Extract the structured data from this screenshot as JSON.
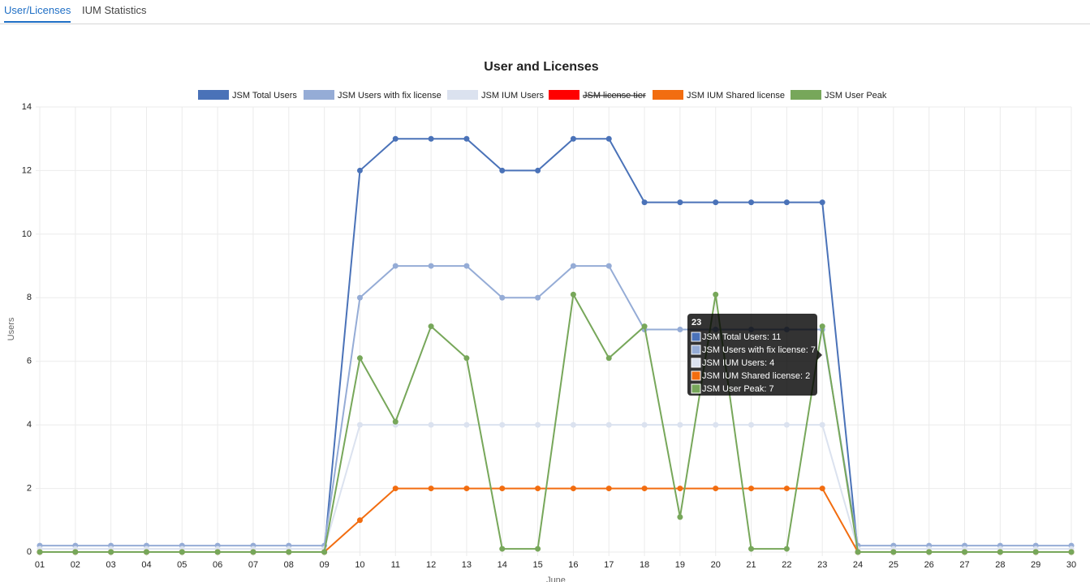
{
  "tabs": [
    "User/Licenses",
    "IUM Statistics"
  ],
  "chart_data": {
    "type": "line",
    "title": "User and Licenses",
    "x_label": "June",
    "y_label": "Users",
    "categories": [
      "01",
      "02",
      "03",
      "04",
      "05",
      "06",
      "07",
      "08",
      "09",
      "10",
      "11",
      "12",
      "13",
      "14",
      "15",
      "16",
      "17",
      "18",
      "19",
      "20",
      "21",
      "22",
      "23",
      "24",
      "25",
      "26",
      "27",
      "28",
      "29",
      "30"
    ],
    "ylim": [
      0,
      14
    ],
    "yticks": [
      0,
      2,
      4,
      6,
      8,
      10,
      12,
      14
    ],
    "grid": true,
    "legend": "top",
    "series": [
      {
        "name": "JSM Total Users",
        "color": "#4a72b8",
        "values": [
          0,
          0,
          0,
          0,
          0,
          0,
          0,
          0,
          0,
          12,
          13,
          13,
          13,
          12,
          12,
          13,
          13,
          11,
          11,
          11,
          11,
          11,
          11,
          0,
          0,
          0,
          0,
          0,
          0,
          0
        ]
      },
      {
        "name": "JSM Users with fix license",
        "color": "#95acd6",
        "values": [
          0.2,
          0.2,
          0.2,
          0.2,
          0.2,
          0.2,
          0.2,
          0.2,
          0.2,
          8,
          9,
          9,
          9,
          8,
          8,
          9,
          9,
          7,
          7,
          7,
          7,
          7,
          7,
          0.2,
          0.2,
          0.2,
          0.2,
          0.2,
          0.2,
          0.2
        ]
      },
      {
        "name": "JSM IUM Users",
        "color": "#dbe2ef",
        "values": [
          0.1,
          0.1,
          0.1,
          0.1,
          0.1,
          0.1,
          0.1,
          0.1,
          0.1,
          4,
          4,
          4,
          4,
          4,
          4,
          4,
          4,
          4,
          4,
          4,
          4,
          4,
          4,
          0.1,
          0.1,
          0.1,
          0.1,
          0.1,
          0.1,
          0.1
        ]
      },
      {
        "name": "JSM license tier",
        "color": "#ff0000",
        "hidden": true,
        "values": [
          null,
          null,
          null,
          null,
          null,
          null,
          null,
          null,
          null,
          null,
          null,
          null,
          null,
          null,
          null,
          null,
          null,
          null,
          null,
          null,
          null,
          null,
          null,
          null,
          null,
          null,
          null,
          null,
          null,
          null
        ]
      },
      {
        "name": "JSM IUM Shared license",
        "color": "#f26d10",
        "values": [
          0,
          0,
          0,
          0,
          0,
          0,
          0,
          0,
          0,
          1,
          2,
          2,
          2,
          2,
          2,
          2,
          2,
          2,
          2,
          2,
          2,
          2,
          2,
          0,
          0,
          0,
          0,
          0,
          0,
          0
        ]
      },
      {
        "name": "JSM User Peak",
        "color": "#77a75a",
        "values": [
          0,
          0,
          0,
          0,
          0,
          0,
          0,
          0,
          0,
          6.1,
          4.1,
          7.1,
          6.1,
          0.1,
          0.1,
          8.1,
          6.1,
          7.1,
          1.1,
          8.1,
          0.1,
          0.1,
          7.1,
          0,
          0,
          0,
          0,
          0,
          0,
          0
        ]
      }
    ],
    "tooltip": {
      "title": "23",
      "lines": [
        {
          "text": "JSM Total Users: 11",
          "color": "#4a72b8"
        },
        {
          "text": "JSM Users with fix license: 7",
          "color": "#95acd6"
        },
        {
          "text": "JSM IUM Users: 4",
          "color": "#dbe2ef"
        },
        {
          "text": "JSM IUM Shared license: 2",
          "color": "#f26d10"
        },
        {
          "text": "JSM User Peak: 7",
          "color": "#77a75a"
        }
      ]
    }
  }
}
